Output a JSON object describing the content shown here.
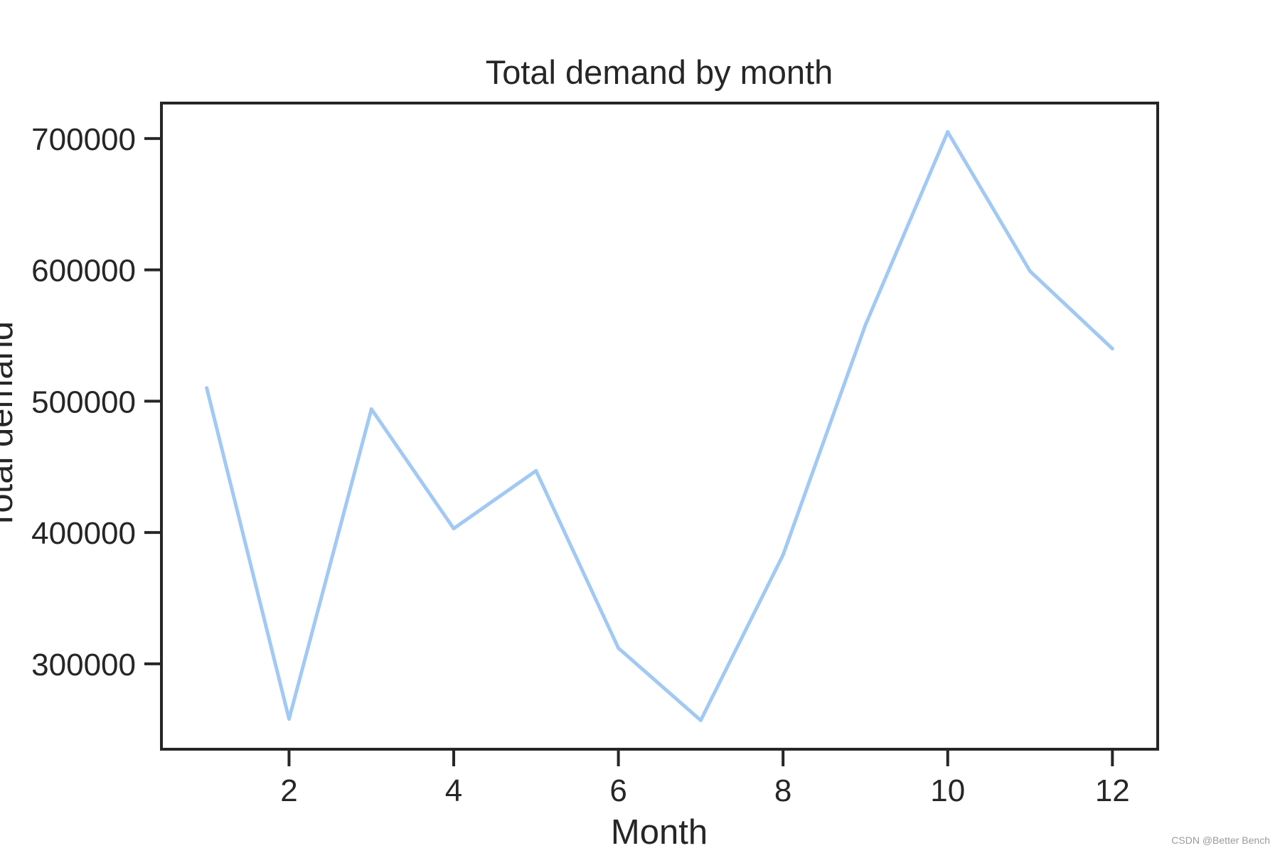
{
  "chart_data": {
    "type": "line",
    "title": "Total demand by month",
    "xlabel": "Month",
    "ylabel": "Total demand",
    "x": [
      1,
      2,
      3,
      4,
      5,
      6,
      7,
      8,
      9,
      10,
      11,
      12
    ],
    "series": [
      {
        "values": [
          510000,
          258000,
          494000,
          403000,
          447000,
          312000,
          257000,
          383000,
          558000,
          705000,
          599000,
          540000
        ]
      }
    ],
    "xticks": [
      2,
      4,
      6,
      8,
      10,
      12
    ],
    "yticks": [
      300000,
      400000,
      500000,
      600000,
      700000
    ],
    "xlim": [
      0.45,
      12.55
    ],
    "ylim": [
      235000,
      727000
    ],
    "grid": false,
    "legend": "none",
    "line_color": "#a1c9f4",
    "axis_color": "#262626"
  },
  "watermark": "CSDN @Better Bench"
}
